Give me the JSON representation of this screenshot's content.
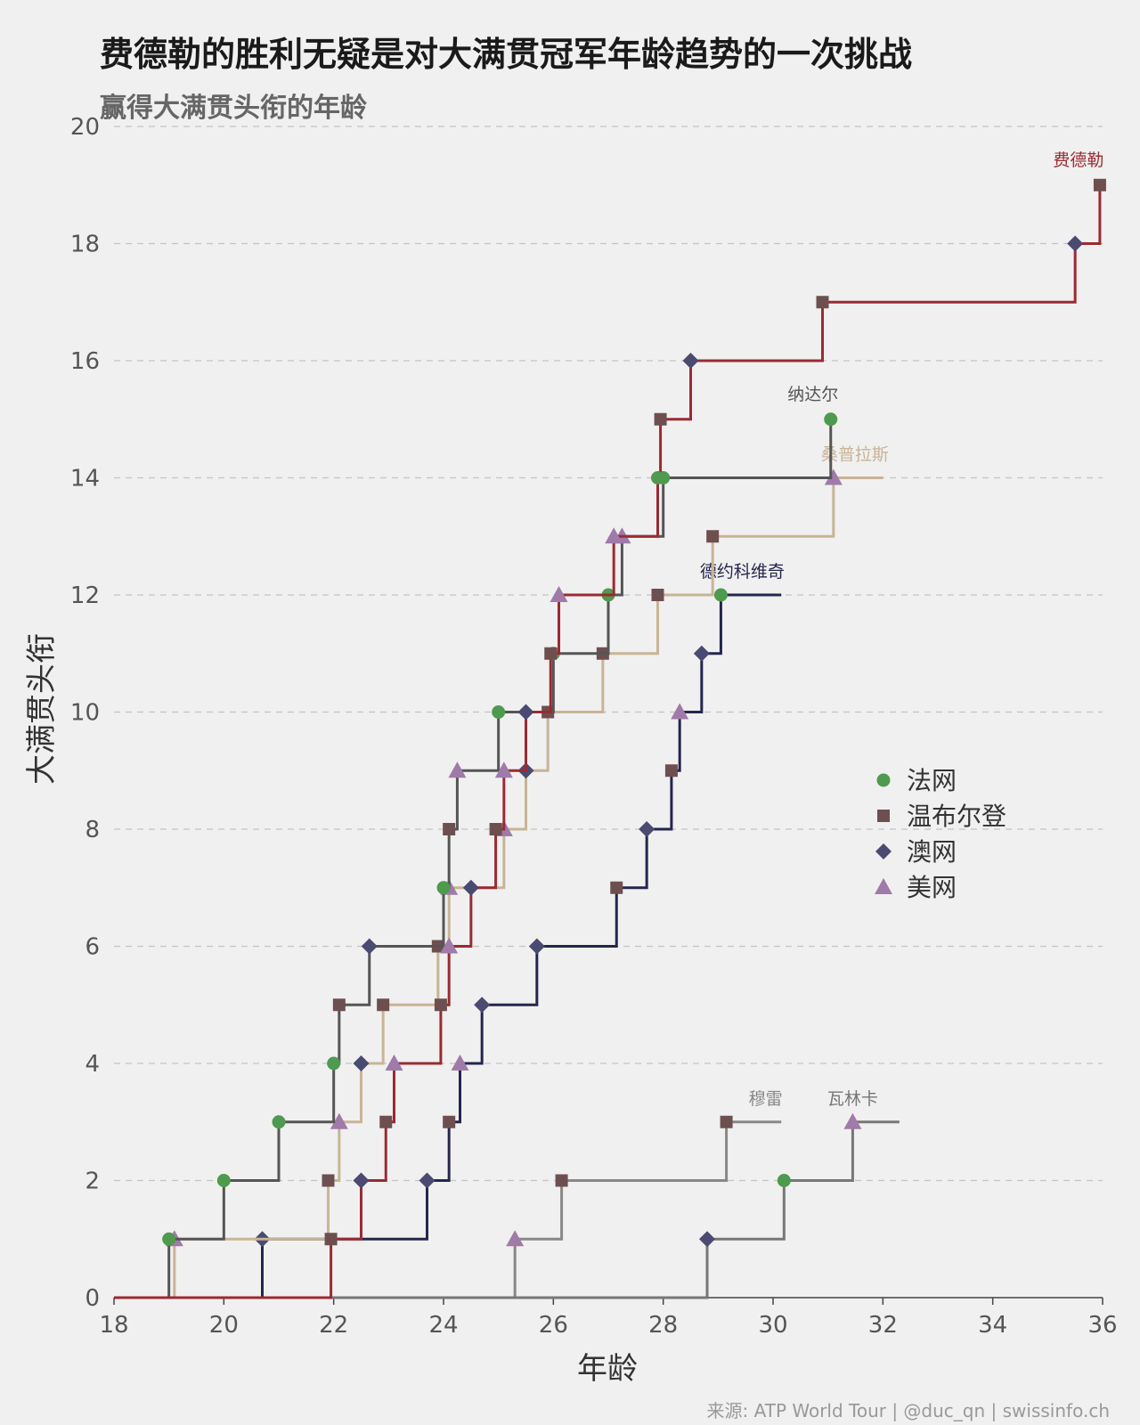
{
  "title": "费德勒的胜利无疑是对大满贯冠军年龄趋势的一次挑战",
  "subtitle": "赢得大满贯头衔的年龄",
  "source": "来源: ATP World Tour | @duc_qn | swissinfo.ch",
  "colors": {
    "法网": "#4e9a4e",
    "温布尔登": "#6e4f4f",
    "澳网": "#4a4a72",
    "美网": "#a07aa8"
  },
  "chart_data": {
    "type": "line",
    "xlabel": "年龄",
    "ylabel": "大满贯头衔",
    "xlim": [
      18,
      36
    ],
    "ylim": [
      0,
      20
    ],
    "xticks": [
      18,
      20,
      22,
      24,
      26,
      28,
      30,
      32,
      34,
      36
    ],
    "yticks": [
      0,
      2,
      4,
      6,
      8,
      10,
      12,
      14,
      16,
      18,
      20
    ],
    "grid": "horizontal-dashed",
    "legend": {
      "position": "right",
      "entries": [
        {
          "label": "法网",
          "marker": "circle"
        },
        {
          "label": "温布尔登",
          "marker": "square"
        },
        {
          "label": "澳网",
          "marker": "diamond"
        },
        {
          "label": "美网",
          "marker": "triangle"
        }
      ]
    },
    "series": [
      {
        "name": "德约科维奇",
        "color": "#252550",
        "end_x": 30.15,
        "wins": [
          {
            "x": 20.7,
            "y": 1,
            "event": "澳网"
          },
          {
            "x": 23.7,
            "y": 2,
            "event": "澳网"
          },
          {
            "x": 24.1,
            "y": 3,
            "event": "温布尔登"
          },
          {
            "x": 24.3,
            "y": 4,
            "event": "美网"
          },
          {
            "x": 24.7,
            "y": 5,
            "event": "澳网"
          },
          {
            "x": 25.7,
            "y": 6,
            "event": "澳网"
          },
          {
            "x": 27.15,
            "y": 7,
            "event": "温布尔登"
          },
          {
            "x": 27.7,
            "y": 8,
            "event": "澳网"
          },
          {
            "x": 28.15,
            "y": 9,
            "event": "温布尔登"
          },
          {
            "x": 28.3,
            "y": 10,
            "event": "美网"
          },
          {
            "x": 28.7,
            "y": 11,
            "event": "澳网"
          },
          {
            "x": 29.05,
            "y": 12,
            "event": "法网"
          }
        ]
      },
      {
        "name": "纳达尔",
        "color": "#555555",
        "end_x": 31.05,
        "wins": [
          {
            "x": 19.0,
            "y": 1,
            "event": "法网"
          },
          {
            "x": 20.0,
            "y": 2,
            "event": "法网"
          },
          {
            "x": 21.0,
            "y": 3,
            "event": "法网"
          },
          {
            "x": 22.0,
            "y": 4,
            "event": "法网"
          },
          {
            "x": 22.1,
            "y": 5,
            "event": "温布尔登"
          },
          {
            "x": 22.65,
            "y": 6,
            "event": "澳网"
          },
          {
            "x": 24.0,
            "y": 7,
            "event": "法网"
          },
          {
            "x": 24.1,
            "y": 8,
            "event": "温布尔登"
          },
          {
            "x": 24.25,
            "y": 9,
            "event": "美网"
          },
          {
            "x": 25.0,
            "y": 10,
            "event": "法网"
          },
          {
            "x": 26.0,
            "y": 11,
            "event": "法网"
          },
          {
            "x": 27.0,
            "y": 12,
            "event": "法网"
          },
          {
            "x": 27.25,
            "y": 13,
            "event": "美网"
          },
          {
            "x": 28.0,
            "y": 14,
            "event": "法网"
          },
          {
            "x": 31.05,
            "y": 15,
            "event": "法网"
          }
        ]
      },
      {
        "name": "桑普拉斯",
        "color": "#c8b496",
        "end_x": 32.0,
        "wins": [
          {
            "x": 19.1,
            "y": 1,
            "event": "美网"
          },
          {
            "x": 21.9,
            "y": 2,
            "event": "温布尔登"
          },
          {
            "x": 22.1,
            "y": 3,
            "event": "美网"
          },
          {
            "x": 22.5,
            "y": 4,
            "event": "澳网"
          },
          {
            "x": 22.9,
            "y": 5,
            "event": "温布尔登"
          },
          {
            "x": 23.9,
            "y": 6,
            "event": "温布尔登"
          },
          {
            "x": 24.1,
            "y": 7,
            "event": "美网"
          },
          {
            "x": 25.1,
            "y": 8,
            "event": "美网"
          },
          {
            "x": 25.5,
            "y": 9,
            "event": "澳网"
          },
          {
            "x": 25.9,
            "y": 10,
            "event": "温布尔登"
          },
          {
            "x": 26.9,
            "y": 11,
            "event": "温布尔登"
          },
          {
            "x": 27.9,
            "y": 12,
            "event": "温布尔登"
          },
          {
            "x": 28.9,
            "y": 13,
            "event": "温布尔登"
          },
          {
            "x": 31.1,
            "y": 14,
            "event": "美网"
          }
        ]
      },
      {
        "name": "费德勒",
        "color": "#9b2a32",
        "end_x": 35.95,
        "wins": [
          {
            "x": 21.95,
            "y": 1,
            "event": "温布尔登"
          },
          {
            "x": 22.5,
            "y": 2,
            "event": "澳网"
          },
          {
            "x": 22.95,
            "y": 3,
            "event": "温布尔登"
          },
          {
            "x": 23.1,
            "y": 4,
            "event": "美网"
          },
          {
            "x": 23.95,
            "y": 5,
            "event": "温布尔登"
          },
          {
            "x": 24.1,
            "y": 6,
            "event": "美网"
          },
          {
            "x": 24.5,
            "y": 7,
            "event": "澳网"
          },
          {
            "x": 24.95,
            "y": 8,
            "event": "温布尔登"
          },
          {
            "x": 25.1,
            "y": 9,
            "event": "美网"
          },
          {
            "x": 25.5,
            "y": 10,
            "event": "澳网"
          },
          {
            "x": 25.95,
            "y": 11,
            "event": "温布尔登"
          },
          {
            "x": 26.1,
            "y": 12,
            "event": "美网"
          },
          {
            "x": 27.1,
            "y": 13,
            "event": "美网"
          },
          {
            "x": 27.9,
            "y": 14,
            "event": "法网"
          },
          {
            "x": 27.95,
            "y": 15,
            "event": "温布尔登"
          },
          {
            "x": 28.5,
            "y": 16,
            "event": "澳网"
          },
          {
            "x": 30.9,
            "y": 17,
            "event": "温布尔登"
          },
          {
            "x": 35.5,
            "y": 18,
            "event": "澳网"
          },
          {
            "x": 35.95,
            "y": 19,
            "event": "温布尔登"
          }
        ]
      },
      {
        "name": "穆雷",
        "color": "#888888",
        "end_x": 30.15,
        "wins": [
          {
            "x": 25.3,
            "y": 1,
            "event": "美网"
          },
          {
            "x": 26.15,
            "y": 2,
            "event": "温布尔登"
          },
          {
            "x": 29.15,
            "y": 3,
            "event": "温布尔登"
          }
        ]
      },
      {
        "name": "瓦林卡",
        "color": "#777777",
        "end_x": 32.3,
        "wins": [
          {
            "x": 28.8,
            "y": 1,
            "event": "澳网"
          },
          {
            "x": 30.2,
            "y": 2,
            "event": "法网"
          },
          {
            "x": 31.45,
            "y": 3,
            "event": "美网"
          }
        ]
      }
    ]
  }
}
